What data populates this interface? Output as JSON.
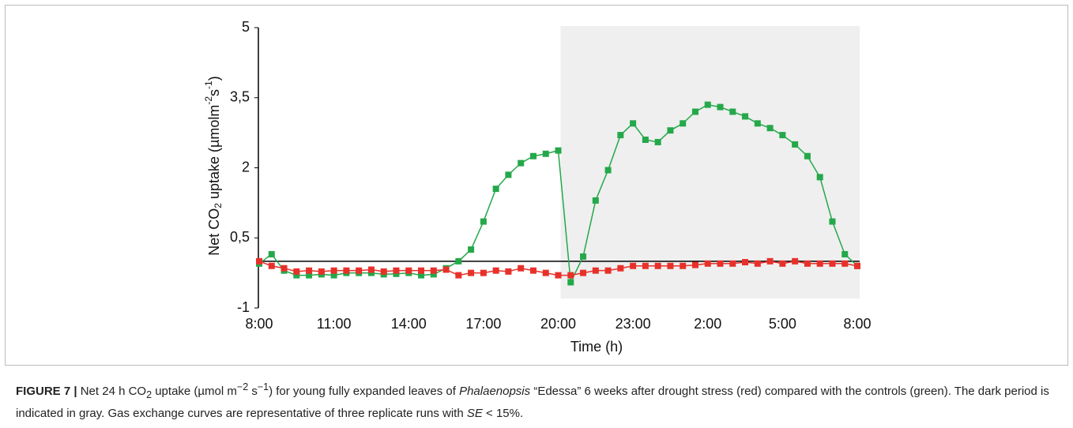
{
  "chart_data": {
    "type": "line",
    "xlabel": "Time (h)",
    "ylabel_parts": [
      "Net CO",
      "2",
      " uptake (µmolm",
      "-2",
      "s",
      "-1",
      ")"
    ],
    "x": [
      0,
      0.5,
      1,
      1.5,
      2,
      2.5,
      3,
      3.5,
      4,
      4.5,
      5,
      5.5,
      6,
      6.5,
      7,
      7.5,
      8,
      8.5,
      9,
      9.5,
      10,
      10.5,
      11,
      11.5,
      12,
      12.5,
      13,
      13.5,
      14,
      14.5,
      15,
      15.5,
      16,
      16.5,
      17,
      17.5,
      18,
      18.5,
      19,
      19.5,
      20,
      20.5,
      21,
      21.5,
      22,
      22.5,
      23,
      23.5,
      24
    ],
    "series": [
      {
        "color": "#24a84a",
        "values": [
          -0.05,
          0.15,
          -0.2,
          -0.3,
          -0.3,
          -0.28,
          -0.3,
          -0.25,
          -0.25,
          -0.25,
          -0.28,
          -0.27,
          -0.25,
          -0.3,
          -0.28,
          -0.15,
          0.0,
          0.25,
          0.85,
          1.55,
          1.85,
          2.1,
          2.25,
          2.3,
          2.37,
          -0.45,
          0.1,
          1.3,
          1.95,
          2.7,
          2.95,
          2.6,
          2.55,
          2.8,
          2.95,
          3.2,
          3.35,
          3.3,
          3.2,
          3.1,
          2.95,
          2.85,
          2.7,
          2.5,
          2.25,
          1.8,
          0.85,
          0.15,
          -0.1
        ]
      },
      {
        "color": "#e8302a",
        "values": [
          0.0,
          -0.1,
          -0.15,
          -0.22,
          -0.2,
          -0.22,
          -0.2,
          -0.2,
          -0.2,
          -0.18,
          -0.22,
          -0.2,
          -0.2,
          -0.2,
          -0.2,
          -0.18,
          -0.3,
          -0.25,
          -0.25,
          -0.2,
          -0.22,
          -0.15,
          -0.2,
          -0.25,
          -0.3,
          -0.3,
          -0.25,
          -0.2,
          -0.2,
          -0.15,
          -0.1,
          -0.1,
          -0.1,
          -0.1,
          -0.1,
          -0.08,
          -0.05,
          -0.05,
          -0.05,
          -0.02,
          -0.05,
          0.0,
          -0.05,
          0.0,
          -0.05,
          -0.05,
          -0.05,
          -0.05,
          -0.1
        ]
      }
    ],
    "dark_period": [
      12,
      24
    ],
    "dark_color": "#efefef",
    "xlim": [
      0,
      24
    ],
    "xticks": [
      {
        "value": 0,
        "label": "8:00"
      },
      {
        "value": 3,
        "label": "11:00"
      },
      {
        "value": 6,
        "label": "14:00"
      },
      {
        "value": 9,
        "label": "17:00"
      },
      {
        "value": 12,
        "label": "20:00"
      },
      {
        "value": 15,
        "label": "23:00"
      },
      {
        "value": 18,
        "label": "2:00"
      },
      {
        "value": 21,
        "label": "5:00"
      },
      {
        "value": 24,
        "label": "8:00"
      }
    ],
    "ylim": [
      -1,
      5
    ],
    "yticks": [
      -1,
      {
        "value": 0.5,
        "label": "0,5"
      },
      2,
      {
        "value": 3.5,
        "label": "3,5"
      },
      5
    ]
  },
  "caption": {
    "label": "FIGURE 7 |",
    "parts": [
      " Net 24 h CO",
      "2",
      " uptake (µmol m",
      "−2",
      " s",
      "−1",
      ") for young fully expanded leaves of ",
      "Phalaenopsis",
      " “Edessa” 6 weeks after drought stress (red) compared with the controls (green). The dark period is indicated in gray. Gas exchange curves are representative of three replicate runs with ",
      "SE",
      " < 15%."
    ]
  }
}
